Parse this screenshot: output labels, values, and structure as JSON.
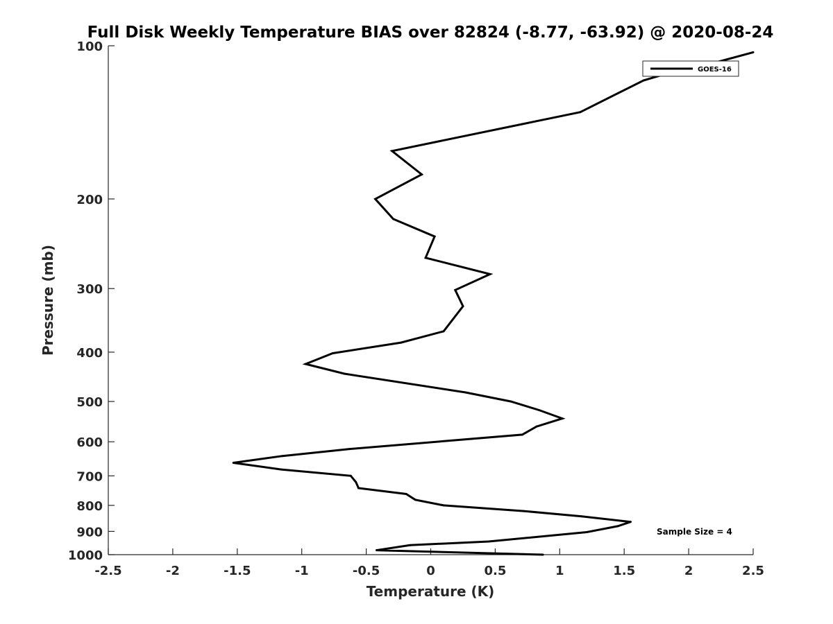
{
  "chart_data": {
    "type": "line",
    "title": "Full Disk Weekly Temperature BIAS over 82824 (-8.77, -63.92) @ 2020-08-24",
    "xlabel": "Temperature (K)",
    "ylabel": "Pressure (mb)",
    "xlim": [
      -2.5,
      2.5
    ],
    "ylim": [
      100,
      1000
    ],
    "y_scale": "log",
    "y_reversed": true,
    "grid": false,
    "legend_position": "top-right",
    "x_ticks": [
      "-2.5",
      "-2",
      "-1.5",
      "-1",
      "-0.5",
      "0",
      "0.5",
      "1",
      "1.5",
      "2",
      "2.5"
    ],
    "y_ticks": [
      "100",
      "200",
      "300",
      "400",
      "500",
      "600",
      "700",
      "800",
      "900",
      "1000"
    ],
    "annotation": "Sample Size = 4",
    "series": [
      {
        "name": "GOES-16",
        "color": "#000000",
        "points": [
          {
            "x": 2.5,
            "y": 103
          },
          {
            "x": 2.2,
            "y": 108
          },
          {
            "x": 1.85,
            "y": 113
          },
          {
            "x": 1.65,
            "y": 117
          },
          {
            "x": 1.16,
            "y": 135
          },
          {
            "x": -0.3,
            "y": 161
          },
          {
            "x": -0.07,
            "y": 179
          },
          {
            "x": -0.43,
            "y": 200
          },
          {
            "x": -0.29,
            "y": 219
          },
          {
            "x": 0.03,
            "y": 237
          },
          {
            "x": -0.04,
            "y": 261
          },
          {
            "x": 0.46,
            "y": 281
          },
          {
            "x": 0.19,
            "y": 302
          },
          {
            "x": 0.25,
            "y": 325
          },
          {
            "x": 0.1,
            "y": 364
          },
          {
            "x": -0.23,
            "y": 383
          },
          {
            "x": -0.76,
            "y": 402
          },
          {
            "x": -0.97,
            "y": 422
          },
          {
            "x": -0.67,
            "y": 441
          },
          {
            "x": 0.27,
            "y": 480
          },
          {
            "x": 0.62,
            "y": 500
          },
          {
            "x": 0.84,
            "y": 520
          },
          {
            "x": 1.02,
            "y": 540
          },
          {
            "x": 0.82,
            "y": 560
          },
          {
            "x": 0.71,
            "y": 581
          },
          {
            "x": -0.63,
            "y": 620
          },
          {
            "x": -1.15,
            "y": 640
          },
          {
            "x": -1.53,
            "y": 660
          },
          {
            "x": -1.16,
            "y": 680
          },
          {
            "x": -0.62,
            "y": 700
          },
          {
            "x": -0.58,
            "y": 720
          },
          {
            "x": -0.56,
            "y": 740
          },
          {
            "x": -0.19,
            "y": 760
          },
          {
            "x": -0.12,
            "y": 780
          },
          {
            "x": 0.1,
            "y": 800
          },
          {
            "x": 0.72,
            "y": 821
          },
          {
            "x": 1.17,
            "y": 841
          },
          {
            "x": 1.55,
            "y": 862
          },
          {
            "x": 1.45,
            "y": 879
          },
          {
            "x": 1.21,
            "y": 903
          },
          {
            "x": 0.45,
            "y": 942
          },
          {
            "x": -0.16,
            "y": 958
          },
          {
            "x": -0.42,
            "y": 980
          },
          {
            "x": 0.87,
            "y": 1000
          }
        ]
      }
    ]
  }
}
